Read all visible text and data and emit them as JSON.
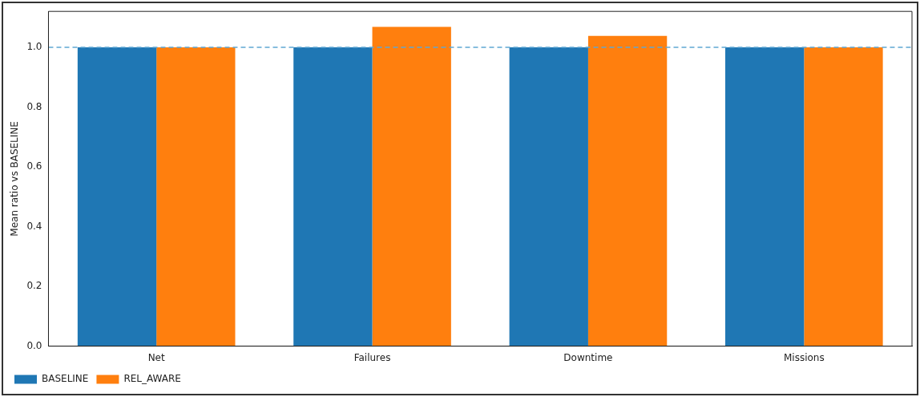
{
  "chart_data": {
    "type": "bar",
    "ylabel": "Mean ratio vs BASELINE",
    "categories": [
      "Net",
      "Failures",
      "Downtime",
      "Missions"
    ],
    "series": [
      {
        "name": "BASELINE",
        "color": "#1f77b4",
        "values": [
          1.0,
          1.0,
          1.0,
          1.0
        ]
      },
      {
        "name": "REL_AWARE",
        "color": "#ff7f0e",
        "values": [
          1.0,
          1.068,
          1.038,
          1.0
        ]
      }
    ],
    "ylim": [
      0,
      1.12
    ],
    "yticks": [
      {
        "value": 0,
        "label": "0.0"
      },
      {
        "value": 0.2,
        "label": "0.2"
      },
      {
        "value": 0.4,
        "label": "0.4"
      },
      {
        "value": 0.6,
        "label": "0.6"
      },
      {
        "value": 0.8,
        "label": "0.8"
      },
      {
        "value": 1.0,
        "label": "1.0"
      }
    ],
    "ref_lines": [
      {
        "axis": "y",
        "value": 1.0,
        "color": "#5fa8d3",
        "line_style": "dashed"
      }
    ],
    "grid": false,
    "legend": "bottom left"
  }
}
